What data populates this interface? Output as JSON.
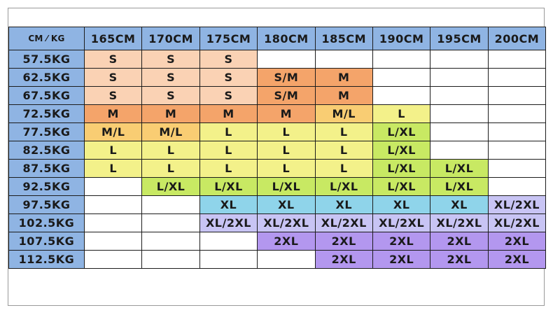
{
  "table": {
    "corner_label": "CM ⁄ KG",
    "heights": [
      "165CM",
      "170CM",
      "175CM",
      "180CM",
      "185CM",
      "190CM",
      "195CM",
      "200CM"
    ],
    "rows": [
      {
        "weight": "57.5KG",
        "cells": [
          "S",
          "S",
          "S",
          "",
          "",
          "",
          "",
          ""
        ]
      },
      {
        "weight": "62.5KG",
        "cells": [
          "S",
          "S",
          "S",
          "S/M",
          "M",
          "",
          "",
          ""
        ]
      },
      {
        "weight": "67.5KG",
        "cells": [
          "S",
          "S",
          "S",
          "S/M",
          "M",
          "",
          "",
          ""
        ]
      },
      {
        "weight": "72.5KG",
        "cells": [
          "M",
          "M",
          "M",
          "M",
          "M/L",
          "L",
          "",
          ""
        ]
      },
      {
        "weight": "77.5KG",
        "cells": [
          "M/L",
          "M/L",
          "L",
          "L",
          "L",
          "L/XL",
          "",
          ""
        ]
      },
      {
        "weight": "82.5KG",
        "cells": [
          "L",
          "L",
          "L",
          "L",
          "L",
          "L/XL",
          "",
          ""
        ]
      },
      {
        "weight": "87.5KG",
        "cells": [
          "L",
          "L",
          "L",
          "L",
          "L",
          "L/XL",
          "L/XL",
          ""
        ]
      },
      {
        "weight": "92.5KG",
        "cells": [
          "",
          "L/XL",
          "L/XL",
          "L/XL",
          "L/XL",
          "L/XL",
          "L/XL",
          ""
        ]
      },
      {
        "weight": "97.5KG",
        "cells": [
          "",
          "",
          "XL",
          "XL",
          "XL",
          "XL",
          "XL",
          "XL/2XL"
        ]
      },
      {
        "weight": "102.5KG",
        "cells": [
          "",
          "",
          "XL/2XL",
          "XL/2XL",
          "XL/2XL",
          "XL/2XL",
          "XL/2XL",
          "XL/2XL"
        ]
      },
      {
        "weight": "107.5KG",
        "cells": [
          "",
          "",
          "",
          "2XL",
          "2XL",
          "2XL",
          "2XL",
          "2XL"
        ]
      },
      {
        "weight": "112.5KG",
        "cells": [
          "",
          "",
          "",
          "",
          "2XL",
          "2XL",
          "2XL",
          "2XL"
        ]
      }
    ]
  },
  "colors": {
    "header": "#8fb4e3",
    "empty": "#ffffff",
    "S": "#fad2b4",
    "S/M": "#f4a46a",
    "M": "#f4a46a",
    "M/L": "#f9cd73",
    "L": "#f3f18a",
    "L/XL": "#c8e963",
    "XL": "#8fd4ea",
    "XL/2XL": "#c8c4f4",
    "2XL": "#b397ef"
  },
  "cell_overrides": [
    {
      "row": 3,
      "col": 0,
      "color": "#f4a46a"
    },
    {
      "row": 3,
      "col": 1,
      "color": "#f4a46a"
    },
    {
      "row": 3,
      "col": 2,
      "color": "#f4a46a"
    },
    {
      "row": 3,
      "col": 3,
      "color": "#f4a46a"
    },
    {
      "row": 3,
      "col": 4,
      "color": "#f9cd73"
    },
    {
      "row": 3,
      "col": 5,
      "color": "#f3f18a"
    },
    {
      "row": 4,
      "col": 5,
      "color": "#c8e963"
    },
    {
      "row": 5,
      "col": 5,
      "color": "#c8e963"
    },
    {
      "row": 6,
      "col": 5,
      "color": "#c8e963"
    },
    {
      "row": 6,
      "col": 6,
      "color": "#c8e963"
    }
  ]
}
